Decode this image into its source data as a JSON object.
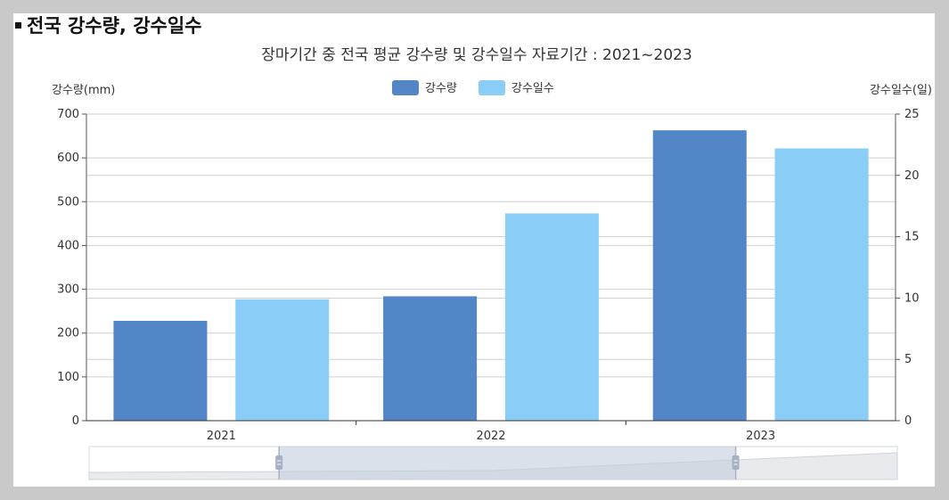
{
  "section": {
    "title": "전국 강수량, 강수일수"
  },
  "chart_data": {
    "type": "bar",
    "title": "장마기간 중 전국 평균 강수량 및 강수일수 자료기간 : 2021~2023",
    "categories": [
      "2021",
      "2022",
      "2023"
    ],
    "series": [
      {
        "name": "강수량",
        "axis": "left",
        "color": "#5286c6",
        "values": [
          228,
          284,
          663
        ]
      },
      {
        "name": "강수일수",
        "axis": "right",
        "color": "#8acdf7",
        "values": [
          9.9,
          16.9,
          22.2
        ]
      }
    ],
    "ylabel_left": "강수량(mm)",
    "ylabel_right": "강수일수(일)",
    "ylim_left": [
      0,
      700
    ],
    "ylim_right": [
      0,
      25
    ],
    "yticks_left": [
      "0",
      "100",
      "200",
      "300",
      "400",
      "500",
      "600",
      "700"
    ],
    "yticks_right": [
      "0",
      "5",
      "10",
      "15",
      "20",
      "25"
    ],
    "grid": true,
    "legend": "top-center"
  },
  "zoom_slider": {
    "start_fraction": 0.235,
    "end_fraction": 0.8
  }
}
